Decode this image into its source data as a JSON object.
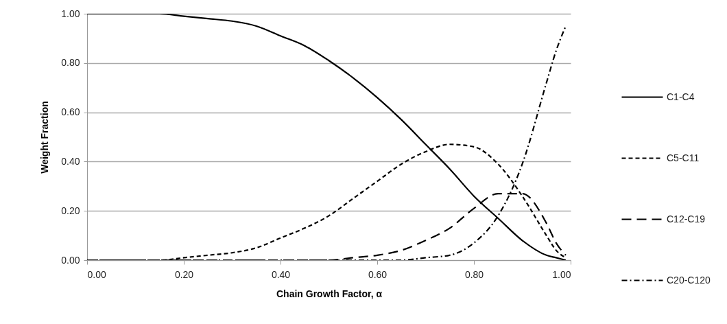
{
  "chart_data": {
    "type": "line",
    "xlabel": "Chain Growth Factor, α",
    "ylabel": "Weight Fraction",
    "x": [
      0,
      0.05,
      0.1,
      0.15,
      0.2,
      0.25,
      0.3,
      0.35,
      0.4,
      0.45,
      0.5,
      0.55,
      0.6,
      0.65,
      0.7,
      0.75,
      0.8,
      0.85,
      0.9,
      0.95,
      0.97,
      0.99
    ],
    "series": [
      {
        "name": "C1-C4",
        "color": "#000000",
        "line_style": "solid",
        "values": [
          1.0,
          1.0,
          1.0,
          1.0,
          0.99,
          0.98,
          0.97,
          0.95,
          0.91,
          0.87,
          0.81,
          0.74,
          0.66,
          0.57,
          0.47,
          0.37,
          0.26,
          0.17,
          0.08,
          0.02,
          0.01,
          0.0
        ]
      },
      {
        "name": "C5-C11",
        "color": "#000000",
        "line_style": "dashed",
        "values": [
          0.0,
          0.0,
          0.0,
          0.0,
          0.01,
          0.02,
          0.03,
          0.05,
          0.09,
          0.13,
          0.18,
          0.25,
          0.32,
          0.39,
          0.44,
          0.47,
          0.46,
          0.39,
          0.26,
          0.1,
          0.04,
          0.01
        ]
      },
      {
        "name": "C12-C19",
        "color": "#000000",
        "line_style": "longdash",
        "values": [
          0.0,
          0.0,
          0.0,
          0.0,
          0.0,
          0.0,
          0.0,
          0.0,
          0.0,
          0.0,
          0.0,
          0.01,
          0.02,
          0.04,
          0.08,
          0.13,
          0.21,
          0.27,
          0.27,
          0.15,
          0.07,
          0.02
        ]
      },
      {
        "name": "C20-C120",
        "color": "#000000",
        "line_style": "dashdot",
        "values": [
          0.0,
          0.0,
          0.0,
          0.0,
          0.0,
          0.0,
          0.0,
          0.0,
          0.0,
          0.0,
          0.0,
          0.0,
          0.0,
          0.0,
          0.01,
          0.02,
          0.07,
          0.18,
          0.39,
          0.72,
          0.85,
          0.95
        ]
      }
    ],
    "xlim": [
      0,
      1
    ],
    "xticks": [
      {
        "value": 0,
        "label": "0.00"
      },
      {
        "value": 0.2,
        "label": "0.20"
      },
      {
        "value": 0.4,
        "label": "0.40"
      },
      {
        "value": 0.6,
        "label": "0.60"
      },
      {
        "value": 0.8,
        "label": "0.80"
      },
      {
        "value": 1,
        "label": "1.00"
      }
    ],
    "ylim": [
      0,
      1
    ],
    "yticks": [
      {
        "value": 0,
        "label": "0.00"
      },
      {
        "value": 0.2,
        "label": "0.20"
      },
      {
        "value": 0.4,
        "label": "0.40"
      },
      {
        "value": 0.6,
        "label": "0.60"
      },
      {
        "value": 0.8,
        "label": "0.80"
      },
      {
        "value": 1,
        "label": "1.00"
      }
    ],
    "grid": "y",
    "legend": "right",
    "marker": "none"
  }
}
